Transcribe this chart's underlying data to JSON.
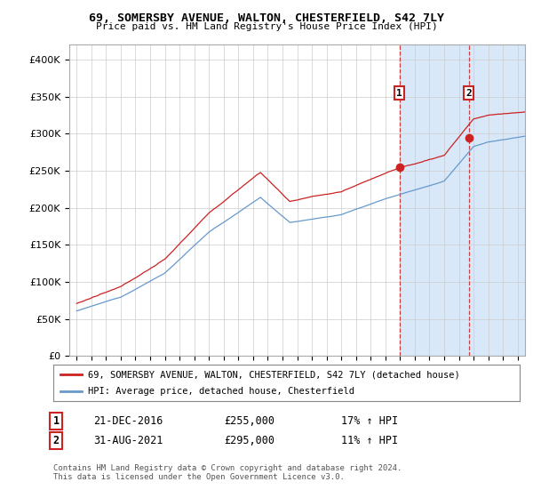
{
  "title": "69, SOMERSBY AVENUE, WALTON, CHESTERFIELD, S42 7LY",
  "subtitle": "Price paid vs. HM Land Registry's House Price Index (HPI)",
  "ylabel_ticks": [
    "£0",
    "£50K",
    "£100K",
    "£150K",
    "£200K",
    "£250K",
    "£300K",
    "£350K",
    "£400K"
  ],
  "ylim": [
    0,
    420000
  ],
  "xlim_start": 1994.5,
  "xlim_end": 2025.5,
  "red_color": "#cc2222",
  "blue_color": "#6699cc",
  "shade_color": "#d8e8f8",
  "sale1_x": 2016.97,
  "sale1_y": 255000,
  "sale1_label": "1",
  "sale1_date": "21-DEC-2016",
  "sale1_price": "£255,000",
  "sale1_hpi": "17% ↑ HPI",
  "sale2_x": 2021.67,
  "sale2_y": 295000,
  "sale2_label": "2",
  "sale2_date": "31-AUG-2021",
  "sale2_price": "£295,000",
  "sale2_hpi": "11% ↑ HPI",
  "legend_label1": "69, SOMERSBY AVENUE, WALTON, CHESTERFIELD, S42 7LY (detached house)",
  "legend_label2": "HPI: Average price, detached house, Chesterfield",
  "footer": "Contains HM Land Registry data © Crown copyright and database right 2024.\nThis data is licensed under the Open Government Licence v3.0."
}
